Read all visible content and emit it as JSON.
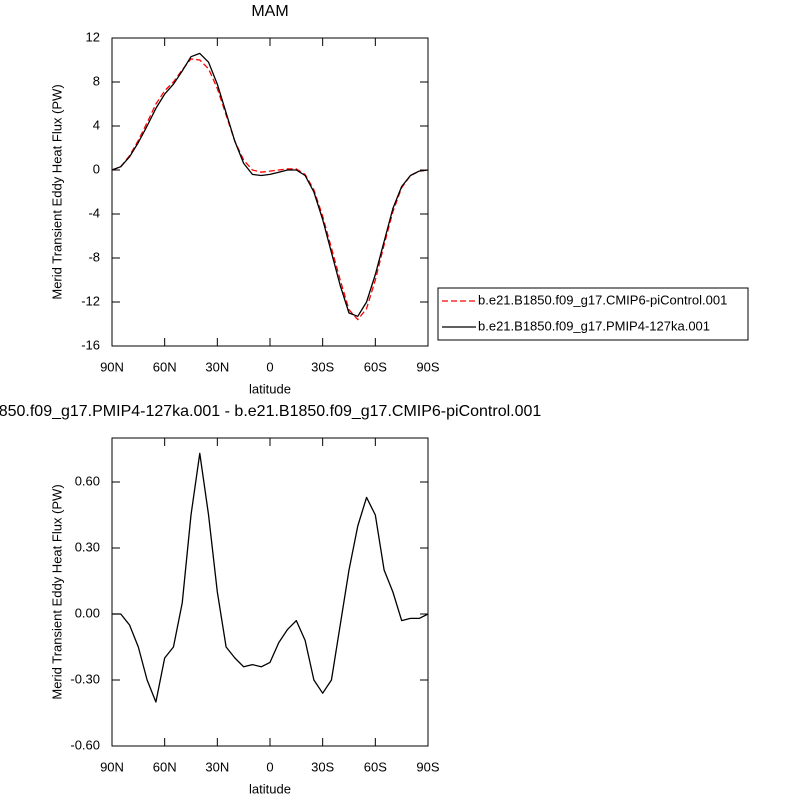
{
  "chart_data": [
    {
      "type": "line",
      "title": "MAM",
      "xlabel": "latitude",
      "ylabel": "Merid Transient Eddy Heat Flux (PW)",
      "x": [
        90,
        85,
        80,
        75,
        70,
        65,
        60,
        55,
        50,
        45,
        40,
        35,
        30,
        25,
        20,
        15,
        10,
        5,
        0,
        -5,
        -10,
        -15,
        -20,
        -25,
        -30,
        -35,
        -40,
        -45,
        -50,
        -55,
        -60,
        -65,
        -70,
        -75,
        -80,
        -85,
        -90
      ],
      "series": [
        {
          "name": "b.e21.B1850.f09_g17.CMIP6-piControl.001",
          "color": "#ff0000",
          "dash": true,
          "values": [
            0,
            0.3,
            1.3,
            2.7,
            4.3,
            6.0,
            7.2,
            8.0,
            9.1,
            10.1,
            10.0,
            9.2,
            7.4,
            5.0,
            2.6,
            0.9,
            0,
            -0.2,
            -0.1,
            0,
            0.1,
            0.1,
            -0.4,
            -1.8,
            -4.2,
            -7.1,
            -10,
            -12.7,
            -13.6,
            -12.6,
            -10,
            -6.8,
            -3.8,
            -1.6,
            -0.5,
            -0.1,
            0
          ]
        },
        {
          "name": "b.e21.B1850.f09_g17.PMIP4-127ka.001",
          "color": "#000000",
          "dash": false,
          "values": [
            0,
            0.3,
            1.2,
            2.5,
            4,
            5.6,
            6.9,
            7.8,
            9.0,
            10.3,
            10.6,
            9.8,
            7.8,
            5.2,
            2.6,
            0.6,
            -0.4,
            -0.5,
            -0.4,
            -0.2,
            0,
            0,
            -0.5,
            -2,
            -4.5,
            -7.5,
            -10.5,
            -13,
            -13.3,
            -12,
            -9.5,
            -6.5,
            -3.5,
            -1.5,
            -0.5,
            -0.1,
            0
          ]
        }
      ],
      "xlim": [
        90,
        -90
      ],
      "xticks": [
        {
          "value": 90,
          "label": "90N"
        },
        {
          "value": 60,
          "label": "60N"
        },
        {
          "value": 30,
          "label": "30N"
        },
        0,
        {
          "value": -30,
          "label": "30S"
        },
        {
          "value": -60,
          "label": "60S"
        },
        {
          "value": -90,
          "label": "90S"
        }
      ],
      "ylim": [
        -16,
        12
      ],
      "yticks": [
        12,
        8,
        4,
        0,
        -4,
        -8,
        -12,
        -16
      ],
      "legend": "right"
    },
    {
      "type": "line",
      "title": "850.f09_g17.PMIP4-127ka.001 - b.e21.B1850.f09_g17.CMIP6-piControl.001",
      "xlabel": "latitude",
      "ylabel": "Merid Transient Eddy Heat Flux (PW)",
      "x": [
        90,
        85,
        80,
        75,
        70,
        65,
        60,
        55,
        50,
        45,
        40,
        35,
        30,
        25,
        20,
        15,
        10,
        5,
        0,
        -5,
        -10,
        -15,
        -20,
        -25,
        -30,
        -35,
        -40,
        -45,
        -50,
        -55,
        -60,
        -65,
        -70,
        -75,
        -80,
        -85,
        -90
      ],
      "series": [
        {
          "color": "#000000",
          "dash": false,
          "values": [
            0,
            0,
            -0.05,
            -0.15,
            -0.3,
            -0.4,
            -0.2,
            -0.15,
            0.05,
            0.45,
            0.73,
            0.45,
            0.1,
            -0.15,
            -0.2,
            -0.24,
            -0.23,
            -0.24,
            -0.22,
            -0.13,
            -0.07,
            -0.03,
            -0.12,
            -0.3,
            -0.36,
            -0.3,
            -0.05,
            0.2,
            0.4,
            0.53,
            0.45,
            0.2,
            0.1,
            -0.03,
            -0.02,
            -0.02,
            0
          ]
        }
      ],
      "xlim": [
        90,
        -90
      ],
      "xticks": [
        {
          "value": 90,
          "label": "90N"
        },
        {
          "value": 60,
          "label": "60N"
        },
        {
          "value": 30,
          "label": "30N"
        },
        0,
        {
          "value": -30,
          "label": "30S"
        },
        {
          "value": -60,
          "label": "60S"
        },
        {
          "value": -90,
          "label": "90S"
        }
      ],
      "ylim": [
        -0.6,
        0.8
      ],
      "yticks": [
        {
          "value": 0.6,
          "label": "0.60"
        },
        {
          "value": 0.3,
          "label": "0.30"
        },
        {
          "value": 0,
          "label": "0.00"
        },
        {
          "value": -0.3,
          "label": "-0.30"
        },
        {
          "value": -0.6,
          "label": "-0.60"
        }
      ]
    }
  ]
}
